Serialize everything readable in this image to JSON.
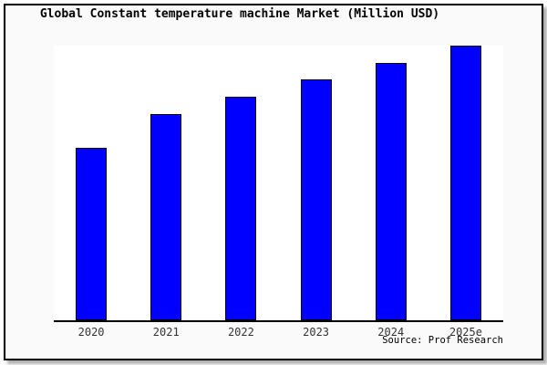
{
  "figure": {
    "page_background": "#ffffff",
    "frame_border_color": "#000000",
    "frame_background": "#fafafa",
    "plot_background": "#ffffff",
    "axis_color": "#000000",
    "shadow_color": "#b0b0b0",
    "tick_label_color": "#333333"
  },
  "chart_data": {
    "type": "bar",
    "title": "Global Constant temperature machine Market (Million USD)",
    "categories": [
      "2020",
      "2021",
      "2022",
      "2023",
      "2024",
      "2025e"
    ],
    "values": [
      62.8,
      75.1,
      81.5,
      87.7,
      93.7,
      100
    ],
    "xlabel": "",
    "ylabel": "",
    "ylim": [
      0,
      100
    ],
    "grid": false,
    "legend": false,
    "y_axis_unlabeled": true,
    "note": "No y-axis ticks are shown in the chart; values are relative bar heights normalized so that 2025e = 100.",
    "bar_color": "#0000ff",
    "bar_border_color": "#000000",
    "source": "Source: Prof Research"
  }
}
